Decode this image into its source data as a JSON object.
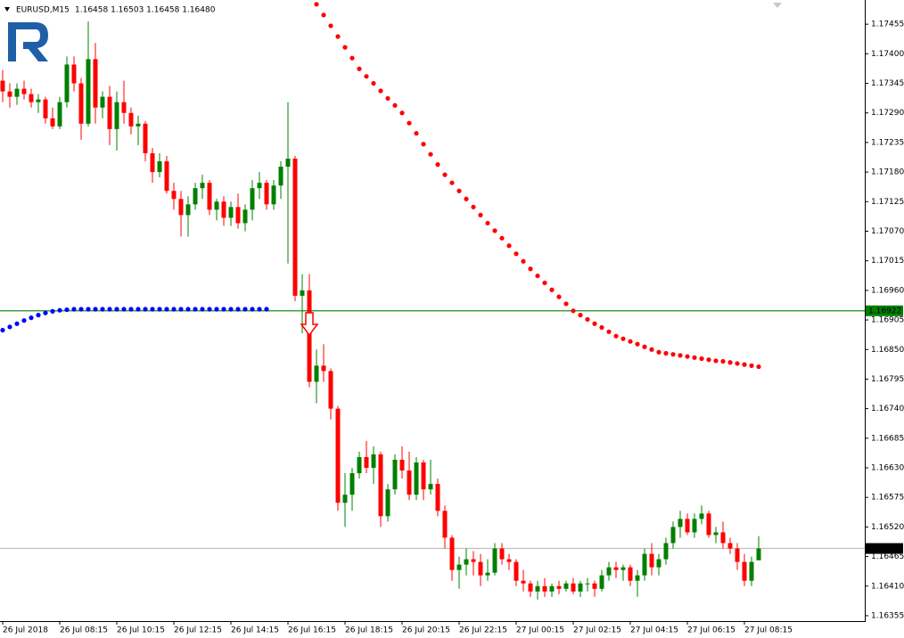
{
  "header": {
    "symbol": "EURUSD,M15",
    "quote": "1.16458 1.16503 1.16458 1.16480"
  },
  "chart_data": {
    "type": "candlestick",
    "bull_color": "#008000",
    "bear_color": "#ff0000",
    "ylim": [
      1.16345,
      1.175
    ],
    "xlim": [
      -0.375,
      120.875
    ],
    "yticks": [
      1.17455,
      {
        "value": 1.174,
        "label": "1.17400"
      },
      1.17345,
      {
        "value": 1.1729,
        "label": "1.17290"
      },
      1.17235,
      {
        "value": 1.1718,
        "label": "1.17180"
      },
      1.17125,
      {
        "value": 1.1707,
        "label": "1.17070"
      },
      1.17015,
      {
        "value": 1.1696,
        "label": "1.16960"
      },
      1.16905,
      {
        "value": 1.1685,
        "label": "1.16850"
      },
      1.16795,
      {
        "value": 1.1674,
        "label": "1.16740"
      },
      1.16685,
      {
        "value": 1.1663,
        "label": "1.16630"
      },
      1.16575,
      {
        "value": 1.1652,
        "label": "1.16520"
      },
      1.16465,
      {
        "value": 1.1641,
        "label": "1.16410"
      },
      1.16355
    ],
    "xticks": [
      {
        "value": 0,
        "label": "26 Jul 2018"
      },
      {
        "value": 8,
        "label": "26 Jul 08:15"
      },
      {
        "value": 16,
        "label": "26 Jul 10:15"
      },
      {
        "value": 24,
        "label": "26 Jul 12:15"
      },
      {
        "value": 32,
        "label": "26 Jul 14:15"
      },
      {
        "value": 40,
        "label": "26 Jul 16:15"
      },
      {
        "value": 48,
        "label": "26 Jul 18:15"
      },
      {
        "value": 56,
        "label": "26 Jul 20:15"
      },
      {
        "value": 64,
        "label": "26 Jul 22:15"
      },
      {
        "value": 72,
        "label": "27 Jul 00:15"
      },
      {
        "value": 80,
        "label": "27 Jul 02:15"
      },
      {
        "value": 88,
        "label": "27 Jul 04:15"
      },
      {
        "value": 96,
        "label": "27 Jul 06:15"
      },
      {
        "value": 104,
        "label": "27 Jul 08:15"
      }
    ],
    "ohlc": [
      [
        1.1735,
        1.1737,
        1.1731,
        1.1733
      ],
      [
        1.1733,
        1.17345,
        1.173,
        1.1732
      ],
      [
        1.1732,
        1.17345,
        1.17305,
        1.17335
      ],
      [
        1.17335,
        1.1735,
        1.17315,
        1.17325
      ],
      [
        1.17325,
        1.17335,
        1.173,
        1.1731
      ],
      [
        1.1731,
        1.17325,
        1.1729,
        1.17315
      ],
      [
        1.17315,
        1.1732,
        1.1727,
        1.1728
      ],
      [
        1.1728,
        1.173,
        1.1726,
        1.17265
      ],
      [
        1.17265,
        1.1732,
        1.1726,
        1.1731
      ],
      [
        1.1731,
        1.17395,
        1.173,
        1.1738
      ],
      [
        1.1738,
        1.17395,
        1.1733,
        1.17345
      ],
      [
        1.17345,
        1.17355,
        1.1724,
        1.1727
      ],
      [
        1.1727,
        1.1746,
        1.17265,
        1.1739
      ],
      [
        1.1739,
        1.1742,
        1.1727,
        1.173
      ],
      [
        1.173,
        1.1733,
        1.1728,
        1.1732
      ],
      [
        1.1732,
        1.1734,
        1.1723,
        1.1726
      ],
      [
        1.1726,
        1.1733,
        1.1722,
        1.1731
      ],
      [
        1.1731,
        1.1735,
        1.1727,
        1.1729
      ],
      [
        1.1729,
        1.173,
        1.1725,
        1.17265
      ],
      [
        1.17265,
        1.17285,
        1.1723,
        1.1727
      ],
      [
        1.1727,
        1.17275,
        1.172,
        1.17215
      ],
      [
        1.17215,
        1.17225,
        1.1716,
        1.1718
      ],
      [
        1.1718,
        1.17215,
        1.1717,
        1.172
      ],
      [
        1.172,
        1.1721,
        1.1714,
        1.17145
      ],
      [
        1.17145,
        1.1716,
        1.1711,
        1.1713
      ],
      [
        1.1713,
        1.17145,
        1.1706,
        1.171
      ],
      [
        1.171,
        1.17135,
        1.1706,
        1.1712
      ],
      [
        1.1712,
        1.1716,
        1.1711,
        1.1715
      ],
      [
        1.1715,
        1.17175,
        1.1713,
        1.1716
      ],
      [
        1.1716,
        1.17165,
        1.171,
        1.1711
      ],
      [
        1.1711,
        1.1713,
        1.1709,
        1.17125
      ],
      [
        1.17125,
        1.17135,
        1.1708,
        1.17095
      ],
      [
        1.17095,
        1.17125,
        1.1708,
        1.17115
      ],
      [
        1.17115,
        1.1714,
        1.17075,
        1.17085
      ],
      [
        1.17085,
        1.1712,
        1.1707,
        1.1711
      ],
      [
        1.1711,
        1.17165,
        1.1709,
        1.1715
      ],
      [
        1.1715,
        1.1718,
        1.1713,
        1.1716
      ],
      [
        1.1716,
        1.17165,
        1.1711,
        1.1712
      ],
      [
        1.1712,
        1.17165,
        1.1711,
        1.17155
      ],
      [
        1.17155,
        1.172,
        1.1713,
        1.1719
      ],
      [
        1.1719,
        1.1731,
        1.1701,
        1.17205
      ],
      [
        1.17205,
        1.1721,
        1.1694,
        1.1695
      ],
      [
        1.1695,
        1.1699,
        1.1688,
        1.1696
      ],
      [
        1.1696,
        1.1699,
        1.1678,
        1.1679
      ],
      [
        1.1679,
        1.1685,
        1.1675,
        1.1682
      ],
      [
        1.1682,
        1.1686,
        1.1679,
        1.1681
      ],
      [
        1.1681,
        1.16815,
        1.1672,
        1.1674
      ],
      [
        1.1674,
        1.16745,
        1.1655,
        1.16565
      ],
      [
        1.16565,
        1.1662,
        1.1652,
        1.1658
      ],
      [
        1.1658,
        1.1663,
        1.1655,
        1.1662
      ],
      [
        1.1662,
        1.1666,
        1.1661,
        1.1665
      ],
      [
        1.1665,
        1.1668,
        1.1662,
        1.1663
      ],
      [
        1.1663,
        1.1667,
        1.166,
        1.16655
      ],
      [
        1.16655,
        1.1666,
        1.1652,
        1.1654
      ],
      [
        1.1654,
        1.166,
        1.1653,
        1.1659
      ],
      [
        1.1659,
        1.16655,
        1.1658,
        1.16645
      ],
      [
        1.16645,
        1.1667,
        1.1661,
        1.16625
      ],
      [
        1.16625,
        1.1666,
        1.1657,
        1.1658
      ],
      [
        1.1658,
        1.1665,
        1.1657,
        1.1664
      ],
      [
        1.1664,
        1.16645,
        1.1657,
        1.1659
      ],
      [
        1.1659,
        1.16645,
        1.1658,
        1.166
      ],
      [
        1.166,
        1.1661,
        1.1654,
        1.1655
      ],
      [
        1.1655,
        1.1656,
        1.1648,
        1.165
      ],
      [
        1.165,
        1.16505,
        1.1642,
        1.1644
      ],
      [
        1.1644,
        1.16465,
        1.16405,
        1.1645
      ],
      [
        1.1645,
        1.1648,
        1.1643,
        1.1646
      ],
      [
        1.1646,
        1.16475,
        1.1643,
        1.16455
      ],
      [
        1.16455,
        1.1647,
        1.1641,
        1.1643
      ],
      [
        1.1643,
        1.1646,
        1.1642,
        1.16435
      ],
      [
        1.16435,
        1.1649,
        1.1643,
        1.1648
      ],
      [
        1.1648,
        1.1649,
        1.1645,
        1.1646
      ],
      [
        1.1646,
        1.1647,
        1.1644,
        1.16455
      ],
      [
        1.16455,
        1.1646,
        1.1641,
        1.1642
      ],
      [
        1.1642,
        1.1644,
        1.164,
        1.16415
      ],
      [
        1.16415,
        1.1642,
        1.1639,
        1.164
      ],
      [
        1.164,
        1.1642,
        1.16385,
        1.1641
      ],
      [
        1.1641,
        1.16425,
        1.1639,
        1.164
      ],
      [
        1.164,
        1.16415,
        1.1639,
        1.1641
      ],
      [
        1.1641,
        1.1642,
        1.16395,
        1.16405
      ],
      [
        1.16405,
        1.1642,
        1.164,
        1.16415
      ],
      [
        1.16415,
        1.16425,
        1.16395,
        1.164
      ],
      [
        1.164,
        1.1642,
        1.1639,
        1.16415
      ],
      [
        1.16415,
        1.16425,
        1.164,
        1.16415
      ],
      [
        1.16415,
        1.1642,
        1.1639,
        1.16405
      ],
      [
        1.16405,
        1.1644,
        1.164,
        1.1643
      ],
      [
        1.1643,
        1.16455,
        1.1642,
        1.16445
      ],
      [
        1.16445,
        1.16455,
        1.16425,
        1.1644
      ],
      [
        1.1644,
        1.1645,
        1.1642,
        1.16445
      ],
      [
        1.16445,
        1.1645,
        1.1641,
        1.1642
      ],
      [
        1.1642,
        1.1644,
        1.1639,
        1.1643
      ],
      [
        1.1643,
        1.1648,
        1.1642,
        1.1647
      ],
      [
        1.1647,
        1.1649,
        1.1643,
        1.16445
      ],
      [
        1.16445,
        1.1647,
        1.1643,
        1.1646
      ],
      [
        1.1646,
        1.165,
        1.1645,
        1.1649
      ],
      [
        1.1649,
        1.1653,
        1.1648,
        1.1652
      ],
      [
        1.1652,
        1.1655,
        1.165,
        1.16535
      ],
      [
        1.16535,
        1.16545,
        1.16505,
        1.1651
      ],
      [
        1.1651,
        1.16545,
        1.165,
        1.16535
      ],
      [
        1.16535,
        1.1656,
        1.16525,
        1.16545
      ],
      [
        1.16545,
        1.1655,
        1.165,
        1.16505
      ],
      [
        1.16505,
        1.1652,
        1.1649,
        1.1651
      ],
      [
        1.1651,
        1.1653,
        1.1648,
        1.1649
      ],
      [
        1.1649,
        1.165,
        1.1647,
        1.1648
      ],
      [
        1.1648,
        1.1649,
        1.1644,
        1.16455
      ],
      [
        1.16455,
        1.1647,
        1.1641,
        1.1642
      ],
      [
        1.1642,
        1.16465,
        1.1641,
        1.16455
      ],
      [
        1.16458,
        1.16503,
        1.16458,
        1.1648
      ]
    ],
    "series": [
      {
        "color": "#ff0000",
        "values": [
          null,
          null,
          null,
          null,
          null,
          null,
          null,
          null,
          null,
          null,
          null,
          null,
          null,
          null,
          null,
          null,
          null,
          null,
          null,
          null,
          null,
          null,
          null,
          null,
          null,
          null,
          null,
          null,
          null,
          null,
          null,
          null,
          null,
          null,
          null,
          null,
          null,
          null,
          null,
          null,
          null,
          null,
          null,
          null,
          1.17492,
          1.17472,
          1.17452,
          1.17432,
          1.17412,
          1.17392,
          1.17372,
          1.17358,
          1.17345,
          1.17331,
          1.17317,
          1.17304,
          1.1729,
          1.17271,
          1.17252,
          1.17232,
          1.17213,
          1.17194,
          1.17175,
          1.1716,
          1.17145,
          1.1713,
          1.17115,
          1.171,
          1.17085,
          1.17071,
          1.17057,
          1.17043,
          1.17028,
          1.17014,
          1.17,
          1.16987,
          1.16974,
          1.16961,
          1.16948,
          1.16935,
          1.16922,
          1.16914,
          1.16906,
          1.16898,
          1.16891,
          1.16883,
          1.16875,
          1.1687,
          1.16865,
          1.1686,
          1.16855,
          1.1685,
          1.16845,
          1.16843,
          1.16841,
          1.16839,
          1.16837,
          1.16835,
          1.16833,
          1.16831,
          1.16829,
          1.16828,
          1.16826,
          1.16824,
          1.16822,
          1.1682,
          1.16818
        ]
      },
      {
        "color": "#0000ff",
        "values": [
          1.16886,
          1.16892,
          1.16898,
          1.16904,
          1.16909,
          1.16914,
          1.16918,
          1.16921,
          1.16923,
          1.16924,
          1.16925,
          1.16925,
          1.16925,
          1.16925,
          1.16925,
          1.16925,
          1.16925,
          1.16925,
          1.16925,
          1.16925,
          1.16925,
          1.16925,
          1.16925,
          1.16925,
          1.16925,
          1.16925,
          1.16925,
          1.16925,
          1.16925,
          1.16925,
          1.16925,
          1.16925,
          1.16925,
          1.16925,
          1.16925,
          1.16925,
          1.16925,
          1.16925,
          null,
          null,
          null,
          null,
          null,
          null,
          null,
          null,
          null,
          null,
          null,
          null,
          null,
          null,
          null,
          null,
          null,
          null,
          null,
          null,
          null,
          null,
          null,
          null,
          null,
          null,
          null,
          null,
          null,
          null,
          null,
          null,
          null,
          null,
          null,
          null,
          null,
          null,
          null,
          null,
          null,
          null,
          null,
          null,
          null,
          null,
          null,
          null,
          null,
          null,
          null,
          null,
          null,
          null,
          null,
          null,
          null,
          null,
          null,
          null,
          null,
          null,
          null,
          null,
          null,
          null,
          null,
          null,
          null
        ]
      }
    ],
    "hlines": [
      {
        "value": 1.16922,
        "color": "#008000",
        "text_color": "#ffffff"
      },
      {
        "value": 1.1648,
        "label": "1.16480",
        "color": "#c0c0c0",
        "box_color": "#000000",
        "text_color": "#ffffff"
      }
    ]
  }
}
